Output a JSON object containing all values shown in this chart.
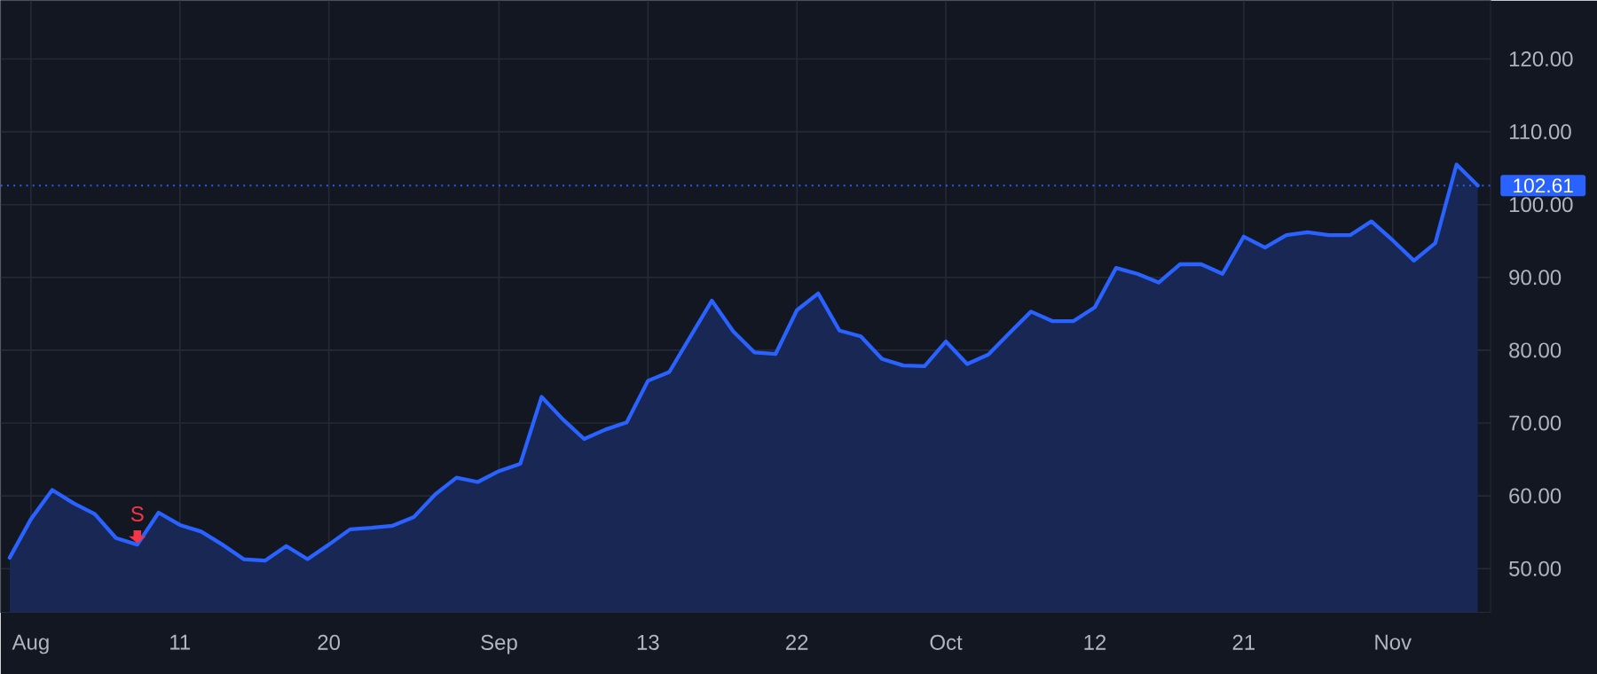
{
  "chart_data": {
    "type": "area",
    "categories": [
      null,
      "Aug",
      null,
      null,
      null,
      null,
      null,
      null,
      "11",
      null,
      null,
      null,
      null,
      null,
      null,
      "20",
      null,
      null,
      null,
      null,
      null,
      null,
      null,
      "Sep",
      null,
      null,
      null,
      null,
      null,
      null,
      "13",
      null,
      null,
      null,
      null,
      null,
      null,
      "22",
      null,
      null,
      null,
      null,
      null,
      null,
      "Oct",
      null,
      null,
      null,
      null,
      null,
      null,
      "12",
      null,
      null,
      null,
      null,
      null,
      null,
      "21",
      null,
      null,
      null,
      null,
      null,
      null,
      "Nov",
      null,
      null,
      null,
      null
    ],
    "series": [
      {
        "color": "#2962ff",
        "values": [
          51.5,
          56.8,
          60.8,
          59.0,
          57.5,
          54.2,
          53.3,
          57.7,
          56.0,
          55.1,
          53.3,
          51.3,
          51.1,
          53.1,
          51.3,
          53.3,
          55.4,
          55.6,
          55.9,
          57.1,
          60.2,
          62.5,
          61.9,
          63.4,
          64.4,
          73.6,
          70.5,
          67.8,
          69.1,
          70.1,
          75.8,
          77.0,
          81.9,
          86.8,
          82.6,
          79.7,
          79.5,
          85.5,
          87.8,
          82.7,
          81.9,
          78.8,
          77.9,
          77.8,
          81.2,
          78.1,
          79.4,
          82.4,
          85.3,
          84.0,
          84.0,
          85.9,
          91.3,
          90.5,
          89.3,
          91.8,
          91.8,
          90.5,
          95.6,
          94.1,
          95.8,
          96.2,
          95.8,
          95.8,
          97.7,
          95.1,
          92.3,
          94.7,
          105.5,
          102.61
        ]
      }
    ],
    "ylim": [
      44,
      128
    ],
    "yticks": [
      {
        "value": 50,
        "label": "50.00"
      },
      {
        "value": 60,
        "label": "60.00"
      },
      {
        "value": 70,
        "label": "70.00"
      },
      {
        "value": 80,
        "label": "80.00"
      },
      {
        "value": 90,
        "label": "90.00"
      },
      {
        "value": 100,
        "label": "100.00"
      },
      {
        "value": 110,
        "label": "110.00"
      },
      {
        "value": 120,
        "label": "120.00"
      }
    ],
    "grid": true,
    "ref_lines": [
      {
        "axis": "y",
        "value": 102.61,
        "label": "102.61",
        "color": "#2962ff",
        "line_style": "dotted"
      }
    ],
    "annotations": [
      "S"
    ]
  }
}
